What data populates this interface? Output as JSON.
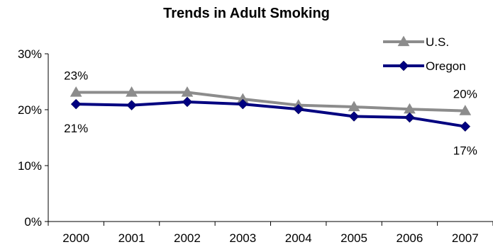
{
  "chart_data": {
    "type": "line",
    "title": "Trends in Adult Smoking",
    "xlabel": "",
    "ylabel": "",
    "categories": [
      "2000",
      "2001",
      "2002",
      "2003",
      "2004",
      "2005",
      "2006",
      "2007"
    ],
    "ylim": [
      0,
      30
    ],
    "yticks": [
      "0%",
      "10%",
      "20%",
      "30%"
    ],
    "grid": false,
    "legend_placement": "top-right",
    "series": [
      {
        "name": "U.S.",
        "color": "#8c8c8c",
        "marker": "triangle",
        "values": [
          23.1,
          23.1,
          23.1,
          21.9,
          20.8,
          20.5,
          20.1,
          19.8
        ]
      },
      {
        "name": "Oregon",
        "color": "#000080",
        "marker": "diamond",
        "values": [
          21.0,
          20.8,
          21.4,
          21.0,
          20.1,
          18.8,
          18.6,
          17.0
        ]
      }
    ],
    "annotations": [
      {
        "text": "23%",
        "series": 0,
        "index": 0,
        "position": "above"
      },
      {
        "text": "20%",
        "series": 0,
        "index": 7,
        "position": "above"
      },
      {
        "text": "21%",
        "series": 1,
        "index": 0,
        "position": "below"
      },
      {
        "text": "17%",
        "series": 1,
        "index": 7,
        "position": "below"
      }
    ]
  }
}
